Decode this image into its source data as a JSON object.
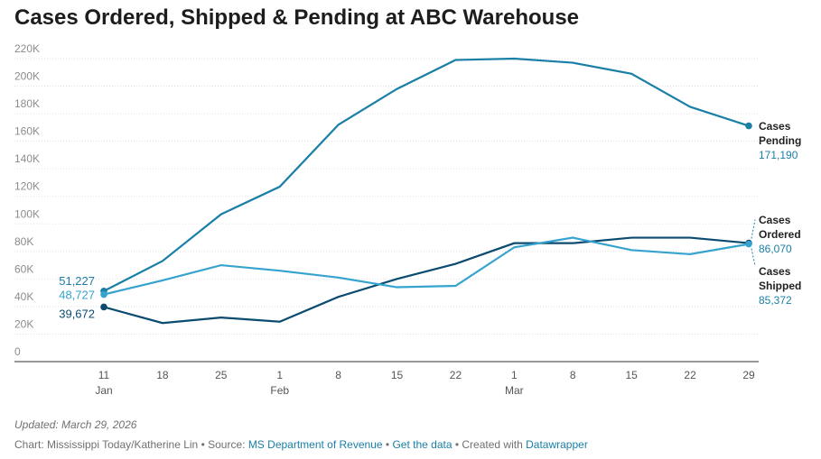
{
  "chart_data": {
    "type": "line",
    "title": "Cases Ordered, Shipped & Pending at ABC Warehouse",
    "categories": [
      "11",
      "18",
      "25",
      "1",
      "8",
      "15",
      "22",
      "1",
      "8",
      "15",
      "22",
      "29"
    ],
    "month_labels": [
      "Jan",
      null,
      null,
      "Feb",
      null,
      null,
      null,
      "Mar",
      null,
      null,
      null,
      null
    ],
    "series": [
      {
        "name": "Cases Pending",
        "color": "#1a7fa6",
        "values": [
          51227,
          73000,
          107000,
          127000,
          172000,
          198000,
          219000,
          220000,
          217000,
          209000,
          185000,
          171190
        ],
        "value_labels": [
          "51,227",
          null,
          null,
          null,
          null,
          null,
          null,
          null,
          null,
          null,
          null,
          "171,190"
        ]
      },
      {
        "name": "Cases Ordered",
        "color": "#0b4b70",
        "values": [
          39672,
          28000,
          32000,
          29000,
          47000,
          60000,
          71000,
          86000,
          86000,
          90000,
          90000,
          86070
        ],
        "value_labels": [
          "39,672",
          null,
          null,
          null,
          null,
          null,
          null,
          null,
          null,
          null,
          null,
          "86,070"
        ]
      },
      {
        "name": "Cases Shipped",
        "color": "#36a3cf",
        "values": [
          48727,
          59000,
          70000,
          66000,
          61000,
          54000,
          55000,
          83000,
          90000,
          81000,
          78000,
          85372
        ],
        "value_labels": [
          "48,727",
          null,
          null,
          null,
          null,
          null,
          null,
          null,
          null,
          null,
          null,
          "85,372"
        ]
      }
    ],
    "ylim": [
      0,
      220000
    ],
    "yticks": [
      {
        "value": 0,
        "label": "0"
      },
      {
        "value": 20000,
        "label": "20K"
      },
      {
        "value": 40000,
        "label": "40K"
      },
      {
        "value": 60000,
        "label": "60K"
      },
      {
        "value": 80000,
        "label": "80K"
      },
      {
        "value": 100000,
        "label": "100K"
      },
      {
        "value": 120000,
        "label": "120K"
      },
      {
        "value": 140000,
        "label": "140K"
      },
      {
        "value": 160000,
        "label": "160K"
      },
      {
        "value": 180000,
        "label": "180K"
      },
      {
        "value": 200000,
        "label": "200K"
      },
      {
        "value": 220000,
        "label": "220K"
      }
    ],
    "grid": true,
    "footer": {
      "updated": "Updated: March 29, 2026",
      "credit": "Chart: Mississippi Today/Katherine Lin",
      "separator": "•",
      "source_label": "Source:",
      "source": "MS Department of Revenue",
      "get_data": "Get the data",
      "created_with": "Created with",
      "tool": "Datawrapper"
    }
  }
}
